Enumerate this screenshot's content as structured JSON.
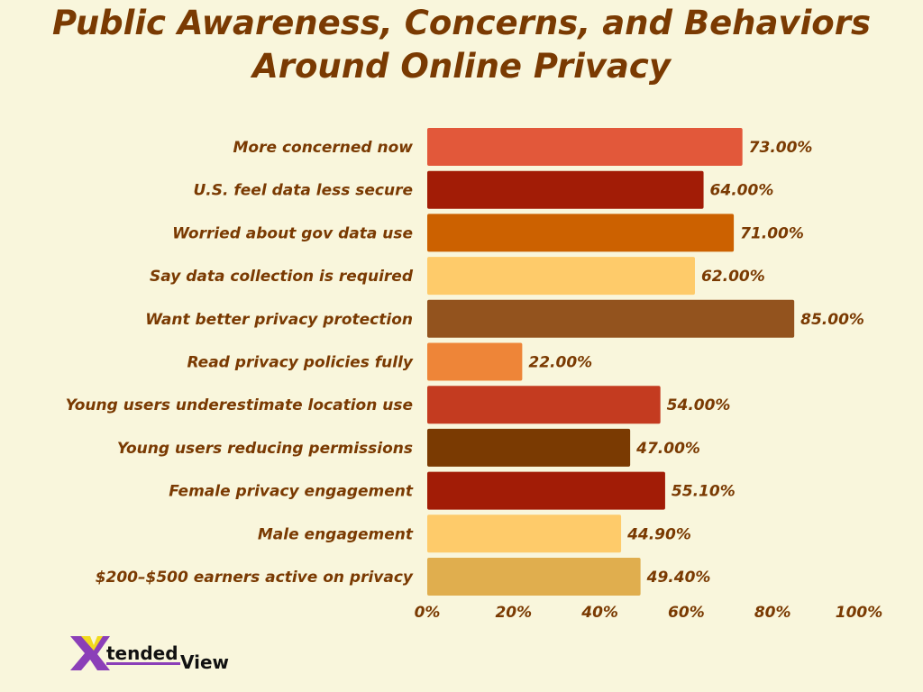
{
  "chart_data": {
    "type": "bar",
    "orientation": "horizontal",
    "title": "Public Awareness, Concerns, and Behaviors Around Online Privacy",
    "categories": [
      "More concerned now",
      "U.S. feel data less secure",
      "Worried about gov data use",
      "Say data collection is required",
      "Want better privacy protection",
      "Read privacy policies fully",
      "Young users underestimate location use",
      "Young users reducing permissions",
      "Female privacy engagement",
      "Male engagement",
      "$200–$500 earners active on privacy"
    ],
    "values": [
      73.0,
      64.0,
      71.0,
      62.0,
      85.0,
      22.0,
      54.0,
      47.0,
      55.1,
      44.9,
      49.4
    ],
    "data_labels": [
      "73.00%",
      "64.00%",
      "71.00%",
      "62.00%",
      "85.00%",
      "22.00%",
      "54.00%",
      "47.00%",
      "55.10%",
      "44.90%",
      "49.40%"
    ],
    "colors": [
      "#E2583A",
      "#A21C06",
      "#CC6100",
      "#FECB6A",
      "#93531E",
      "#EE8538",
      "#C43B20",
      "#7A3A02",
      "#A21C06",
      "#FECB6A",
      "#E0AE4E"
    ],
    "xlim": [
      0,
      100
    ],
    "xticks": [
      "0%",
      "20%",
      "40%",
      "60%",
      "80%",
      "100%"
    ],
    "grid": false,
    "legend": "none"
  },
  "logo": {
    "text": "XtendedView"
  },
  "colors": {
    "background": "#F9F6DC",
    "text": "#7A3A02"
  }
}
